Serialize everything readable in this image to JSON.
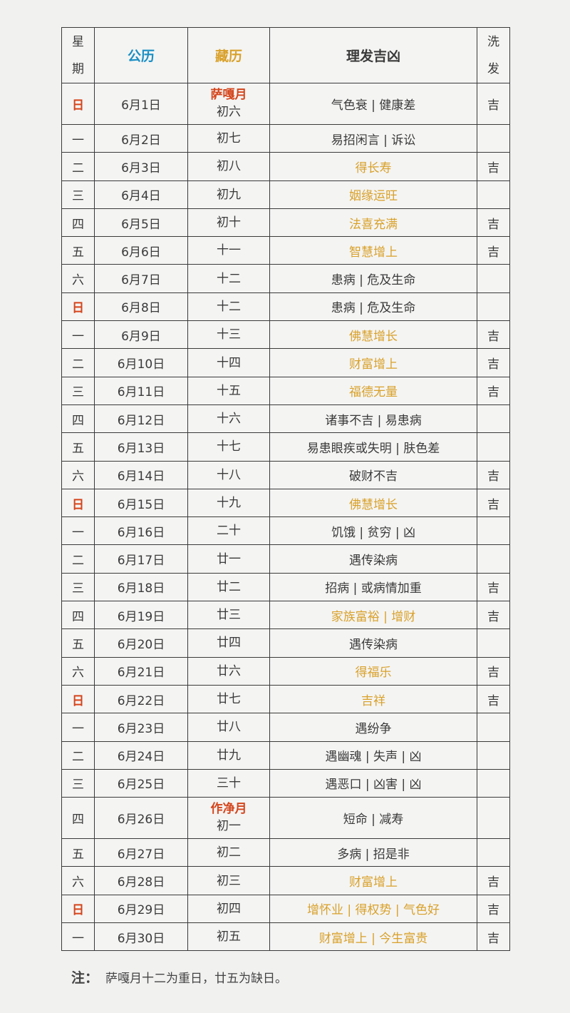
{
  "header": {
    "week": "星期",
    "gregorian": "公历",
    "tibetan": "藏历",
    "haircut": "理发吉凶",
    "wash": "洗发"
  },
  "colors": {
    "gregorian_header": "#1a8fc4",
    "tibetan_header": "#d9a12a",
    "sunday_and_month": "#d4451c",
    "auspicious_text": "#d9a12a",
    "border": "#3a3a3a"
  },
  "rows": [
    {
      "week": "日",
      "date": "6月1日",
      "month": "萨嘎月",
      "tib": "初六",
      "text": "气色衰 | 健康差",
      "good": false,
      "wash": "吉"
    },
    {
      "week": "一",
      "date": "6月2日",
      "tib": "初七",
      "text": "易招闲言 | 诉讼",
      "good": false,
      "wash": ""
    },
    {
      "week": "二",
      "date": "6月3日",
      "tib": "初八",
      "text": "得长寿",
      "good": true,
      "wash": "吉"
    },
    {
      "week": "三",
      "date": "6月4日",
      "tib": "初九",
      "text": "姻缘运旺",
      "good": true,
      "wash": ""
    },
    {
      "week": "四",
      "date": "6月5日",
      "tib": "初十",
      "text": "法喜充满",
      "good": true,
      "wash": "吉"
    },
    {
      "week": "五",
      "date": "6月6日",
      "tib": "十一",
      "text": "智慧增上",
      "good": true,
      "wash": "吉"
    },
    {
      "week": "六",
      "date": "6月7日",
      "tib": "十二",
      "text": "患病 | 危及生命",
      "good": false,
      "wash": ""
    },
    {
      "week": "日",
      "date": "6月8日",
      "tib": "十二",
      "text": "患病 | 危及生命",
      "good": false,
      "wash": ""
    },
    {
      "week": "一",
      "date": "6月9日",
      "tib": "十三",
      "text": "佛慧增长",
      "good": true,
      "wash": "吉"
    },
    {
      "week": "二",
      "date": "6月10日",
      "tib": "十四",
      "text": "财富增上",
      "good": true,
      "wash": "吉"
    },
    {
      "week": "三",
      "date": "6月11日",
      "tib": "十五",
      "text": "福德无量",
      "good": true,
      "wash": "吉"
    },
    {
      "week": "四",
      "date": "6月12日",
      "tib": "十六",
      "text": "诸事不吉 | 易患病",
      "good": false,
      "wash": ""
    },
    {
      "week": "五",
      "date": "6月13日",
      "tib": "十七",
      "text": "易患眼疾或失明 | 肤色差",
      "good": false,
      "wash": ""
    },
    {
      "week": "六",
      "date": "6月14日",
      "tib": "十八",
      "text": "破财不吉",
      "good": false,
      "wash": "吉"
    },
    {
      "week": "日",
      "date": "6月15日",
      "tib": "十九",
      "text": "佛慧增长",
      "good": true,
      "wash": "吉"
    },
    {
      "week": "一",
      "date": "6月16日",
      "tib": "二十",
      "text": "饥饿 | 贫穷 | 凶",
      "good": false,
      "wash": ""
    },
    {
      "week": "二",
      "date": "6月17日",
      "tib": "廿一",
      "text": "遇传染病",
      "good": false,
      "wash": ""
    },
    {
      "week": "三",
      "date": "6月18日",
      "tib": "廿二",
      "text": "招病 | 或病情加重",
      "good": false,
      "wash": "吉"
    },
    {
      "week": "四",
      "date": "6月19日",
      "tib": "廿三",
      "text": "家族富裕 | 增财",
      "good": true,
      "wash": "吉"
    },
    {
      "week": "五",
      "date": "6月20日",
      "tib": "廿四",
      "text": "遇传染病",
      "good": false,
      "wash": ""
    },
    {
      "week": "六",
      "date": "6月21日",
      "tib": "廿六",
      "text": "得福乐",
      "good": true,
      "wash": "吉"
    },
    {
      "week": "日",
      "date": "6月22日",
      "tib": "廿七",
      "text": "吉祥",
      "good": true,
      "wash": "吉"
    },
    {
      "week": "一",
      "date": "6月23日",
      "tib": "廿八",
      "text": "遇纷争",
      "good": false,
      "wash": ""
    },
    {
      "week": "二",
      "date": "6月24日",
      "tib": "廿九",
      "text": "遇幽魂 | 失声 | 凶",
      "good": false,
      "wash": ""
    },
    {
      "week": "三",
      "date": "6月25日",
      "tib": "三十",
      "text": "遇恶口 | 凶害 | 凶",
      "good": false,
      "wash": ""
    },
    {
      "week": "四",
      "date": "6月26日",
      "month": "作净月",
      "tib": "初一",
      "text": "短命 | 减寿",
      "good": false,
      "wash": ""
    },
    {
      "week": "五",
      "date": "6月27日",
      "tib": "初二",
      "text": "多病 | 招是非",
      "good": false,
      "wash": ""
    },
    {
      "week": "六",
      "date": "6月28日",
      "tib": "初三",
      "text": "财富增上",
      "good": true,
      "wash": "吉"
    },
    {
      "week": "日",
      "date": "6月29日",
      "tib": "初四",
      "text": "增怀业 | 得权势 | 气色好",
      "good": true,
      "wash": "吉"
    },
    {
      "week": "一",
      "date": "6月30日",
      "tib": "初五",
      "text": "财富增上 | 今生富贵",
      "good": true,
      "wash": "吉"
    }
  ],
  "note": {
    "label": "注：",
    "text": "萨嘎月十二为重日，廿五为缺日。"
  }
}
